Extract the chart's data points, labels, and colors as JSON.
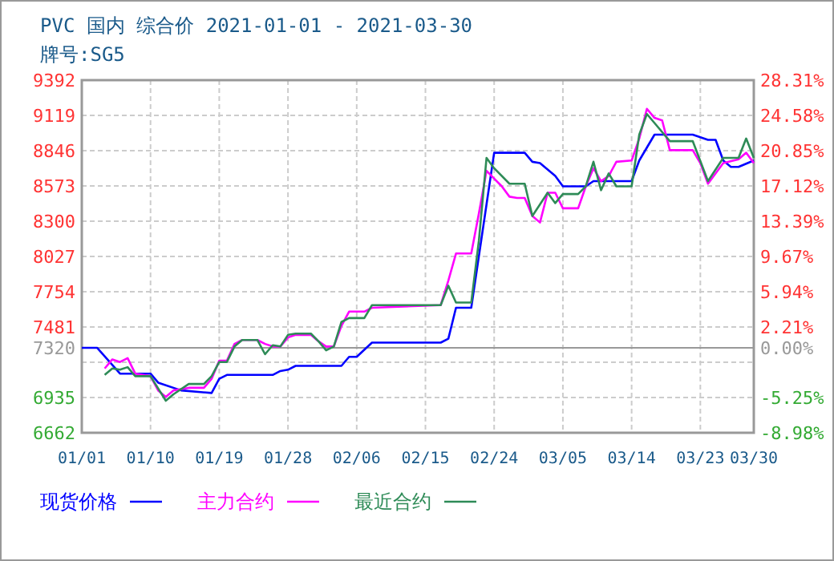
{
  "chart_data": {
    "type": "line",
    "title": "PVC 国内 综合价 2021-01-01 - 2021-03-30",
    "subtitle": "牌号:SG5",
    "xlim": [
      "2021-01-01",
      "2021-03-30"
    ],
    "xticks": [
      {
        "value": "2021-01-01",
        "label": "01/01"
      },
      {
        "value": "2021-01-10",
        "label": "01/10"
      },
      {
        "value": "2021-01-19",
        "label": "01/19"
      },
      {
        "value": "2021-01-28",
        "label": "01/28"
      },
      {
        "value": "2021-02-06",
        "label": "02/06"
      },
      {
        "value": "2021-02-15",
        "label": "02/15"
      },
      {
        "value": "2021-02-24",
        "label": "02/24"
      },
      {
        "value": "2021-03-05",
        "label": "03/05"
      },
      {
        "value": "2021-03-14",
        "label": "03/14"
      },
      {
        "value": "2021-03-23",
        "label": "03/23"
      },
      {
        "value": "2021-03-30",
        "label": "03/30"
      }
    ],
    "ylim": [
      6662,
      9392
    ],
    "yticks": [
      6662,
      6935,
      {
        "value": 7208,
        "label": null
      },
      7320,
      7481,
      7754,
      8027,
      8300,
      8573,
      8846,
      9119,
      9392
    ],
    "y2lim": [
      -8.98,
      28.31
    ],
    "y2ticks": [
      {
        "value": -8.98,
        "label": "-8.98%"
      },
      {
        "value": -5.25,
        "label": "-5.25%"
      },
      {
        "value": 0,
        "label": "0.00%"
      },
      {
        "value": 2.21,
        "label": "2.21%"
      },
      {
        "value": 5.94,
        "label": "5.94%"
      },
      {
        "value": 9.67,
        "label": "9.67%"
      },
      {
        "value": 13.39,
        "label": "13.39%"
      },
      {
        "value": 17.12,
        "label": "17.12%"
      },
      {
        "value": 20.85,
        "label": "20.85%"
      },
      {
        "value": 24.58,
        "label": "24.58%"
      },
      {
        "value": 28.31,
        "label": "28.31%"
      }
    ],
    "grid": true,
    "legend": "bottom",
    "ref_lines": [
      {
        "axis": "y",
        "value": 7320,
        "color": "#999999"
      }
    ],
    "series": [
      {
        "name": "现货价格",
        "color": "#0000ff",
        "x": [
          "2021-01-01",
          "2021-01-03",
          "2021-01-06",
          "2021-01-10",
          "2021-01-11",
          "2021-01-14",
          "2021-01-18",
          "2021-01-19",
          "2021-01-20",
          "2021-01-26",
          "2021-01-27",
          "2021-01-28",
          "2021-01-29",
          "2021-02-04",
          "2021-02-05",
          "2021-02-06",
          "2021-02-08",
          "2021-02-17",
          "2021-02-18",
          "2021-02-19",
          "2021-02-21",
          "2021-02-24",
          "2021-02-28",
          "2021-03-01",
          "2021-03-02",
          "2021-03-04",
          "2021-03-05",
          "2021-03-08",
          "2021-03-09",
          "2021-03-14",
          "2021-03-15",
          "2021-03-17",
          "2021-03-22",
          "2021-03-24",
          "2021-03-25",
          "2021-03-26",
          "2021-03-27",
          "2021-03-28",
          "2021-03-30"
        ],
        "values": [
          7320,
          7320,
          7120,
          7120,
          7050,
          6990,
          6970,
          7080,
          7110,
          7110,
          7140,
          7150,
          7180,
          7180,
          7250,
          7250,
          7360,
          7360,
          7390,
          7630,
          7630,
          8830,
          8830,
          8760,
          8750,
          8650,
          8570,
          8570,
          8610,
          8610,
          8770,
          8970,
          8970,
          8930,
          8930,
          8770,
          8720,
          8720,
          8770
        ]
      },
      {
        "name": "主力合约",
        "color": "#ff00ff",
        "x": [
          "2021-01-04",
          "2021-01-05",
          "2021-01-06",
          "2021-01-07",
          "2021-01-08",
          "2021-01-10",
          "2021-01-11",
          "2021-01-12",
          "2021-01-13",
          "2021-01-15",
          "2021-01-17",
          "2021-01-18",
          "2021-01-19",
          "2021-01-20",
          "2021-01-21",
          "2021-01-22",
          "2021-01-24",
          "2021-01-25",
          "2021-01-26",
          "2021-01-27",
          "2021-01-28",
          "2021-01-29",
          "2021-01-31",
          "2021-02-01",
          "2021-02-02",
          "2021-02-03",
          "2021-02-04",
          "2021-02-05",
          "2021-02-07",
          "2021-02-08",
          "2021-02-17",
          "2021-02-18",
          "2021-02-19",
          "2021-02-21",
          "2021-02-22",
          "2021-02-23",
          "2021-02-24",
          "2021-02-25",
          "2021-02-26",
          "2021-02-27",
          "2021-02-28",
          "2021-03-01",
          "2021-03-02",
          "2021-03-03",
          "2021-03-04",
          "2021-03-05",
          "2021-03-07",
          "2021-03-08",
          "2021-03-09",
          "2021-03-10",
          "2021-03-11",
          "2021-03-12",
          "2021-03-14",
          "2021-03-15",
          "2021-03-16",
          "2021-03-17",
          "2021-03-18",
          "2021-03-19",
          "2021-03-22",
          "2021-03-23",
          "2021-03-24",
          "2021-03-26",
          "2021-03-28",
          "2021-03-29",
          "2021-03-30"
        ],
        "values": [
          7160,
          7230,
          7210,
          7240,
          7120,
          7100,
          6990,
          6940,
          6990,
          7010,
          7010,
          7080,
          7220,
          7220,
          7350,
          7380,
          7380,
          7350,
          7330,
          7330,
          7400,
          7420,
          7420,
          7370,
          7330,
          7330,
          7490,
          7600,
          7600,
          7630,
          7650,
          7840,
          8050,
          8050,
          8360,
          8690,
          8630,
          8570,
          8490,
          8480,
          8480,
          8340,
          8290,
          8520,
          8520,
          8400,
          8400,
          8570,
          8710,
          8610,
          8650,
          8760,
          8770,
          8940,
          9170,
          9100,
          9080,
          8850,
          8850,
          8750,
          8590,
          8750,
          8780,
          8830,
          8750
        ]
      },
      {
        "name": "最近合约",
        "color": "#2e8b57",
        "x": [
          "2021-01-04",
          "2021-01-05",
          "2021-01-06",
          "2021-01-07",
          "2021-01-08",
          "2021-01-10",
          "2021-01-12",
          "2021-01-13",
          "2021-01-15",
          "2021-01-17",
          "2021-01-18",
          "2021-01-19",
          "2021-01-20",
          "2021-01-21",
          "2021-01-22",
          "2021-01-24",
          "2021-01-25",
          "2021-01-26",
          "2021-01-27",
          "2021-01-28",
          "2021-01-29",
          "2021-01-31",
          "2021-02-01",
          "2021-02-02",
          "2021-02-03",
          "2021-02-04",
          "2021-02-05",
          "2021-02-07",
          "2021-02-08",
          "2021-02-17",
          "2021-02-18",
          "2021-02-19",
          "2021-02-21",
          "2021-02-22",
          "2021-02-23",
          "2021-02-24",
          "2021-02-26",
          "2021-02-28",
          "2021-03-01",
          "2021-03-03",
          "2021-03-04",
          "2021-03-05",
          "2021-03-07",
          "2021-03-08",
          "2021-03-09",
          "2021-03-10",
          "2021-03-11",
          "2021-03-12",
          "2021-03-14",
          "2021-03-15",
          "2021-03-16",
          "2021-03-17",
          "2021-03-19",
          "2021-03-22",
          "2021-03-24",
          "2021-03-26",
          "2021-03-28",
          "2021-03-29",
          "2021-03-30"
        ],
        "values": [
          7110,
          7160,
          7150,
          7170,
          7100,
          7100,
          6910,
          6960,
          7040,
          7040,
          7100,
          7210,
          7210,
          7330,
          7380,
          7380,
          7270,
          7340,
          7330,
          7420,
          7430,
          7430,
          7370,
          7300,
          7330,
          7520,
          7550,
          7550,
          7650,
          7650,
          7800,
          7670,
          7670,
          8150,
          8790,
          8710,
          8590,
          8590,
          8340,
          8520,
          8440,
          8510,
          8510,
          8570,
          8760,
          8540,
          8670,
          8570,
          8570,
          8970,
          9130,
          9060,
          8920,
          8920,
          8610,
          8790,
          8790,
          8940,
          8790
        ]
      }
    ]
  }
}
